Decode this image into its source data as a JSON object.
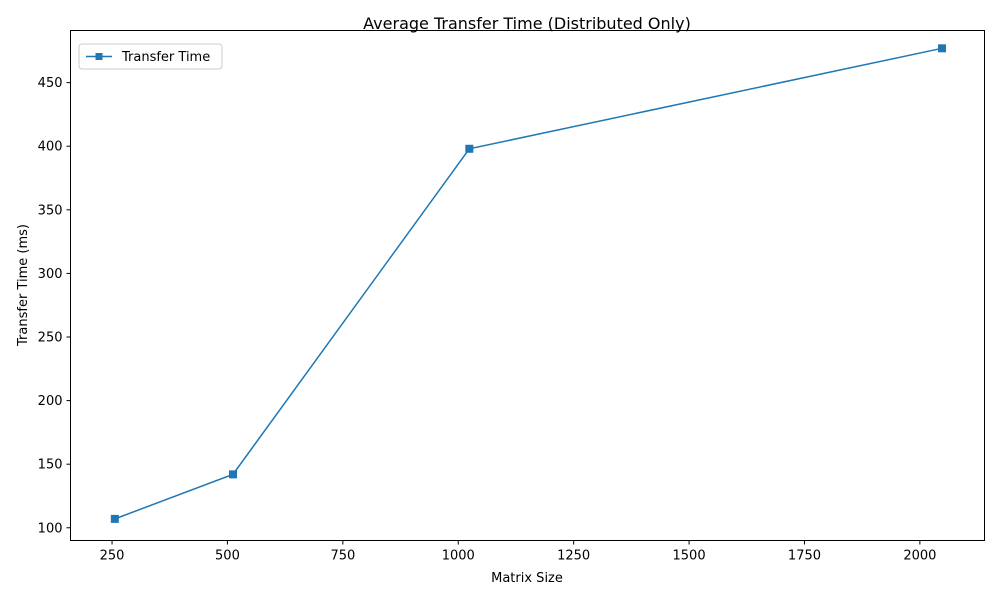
{
  "chart_data": {
    "type": "line",
    "title": "Average Transfer Time (Distributed Only)",
    "xlabel": "Matrix Size",
    "ylabel": "Transfer Time (ms)",
    "xlim": [
      160,
      2140
    ],
    "ylim": [
      90,
      491
    ],
    "xticks": [
      250,
      500,
      750,
      1000,
      1250,
      1500,
      1750,
      2000
    ],
    "yticks": [
      100,
      150,
      200,
      250,
      300,
      350,
      400,
      450
    ],
    "grid": false,
    "legend": {
      "placement": "top-left",
      "entries": [
        "Transfer Time"
      ]
    },
    "series": [
      {
        "name": "Transfer Time",
        "color": "#1f77b4",
        "marker": "square",
        "x": [
          256,
          512,
          1024,
          2048
        ],
        "y": [
          107,
          142,
          398,
          477
        ]
      }
    ]
  }
}
